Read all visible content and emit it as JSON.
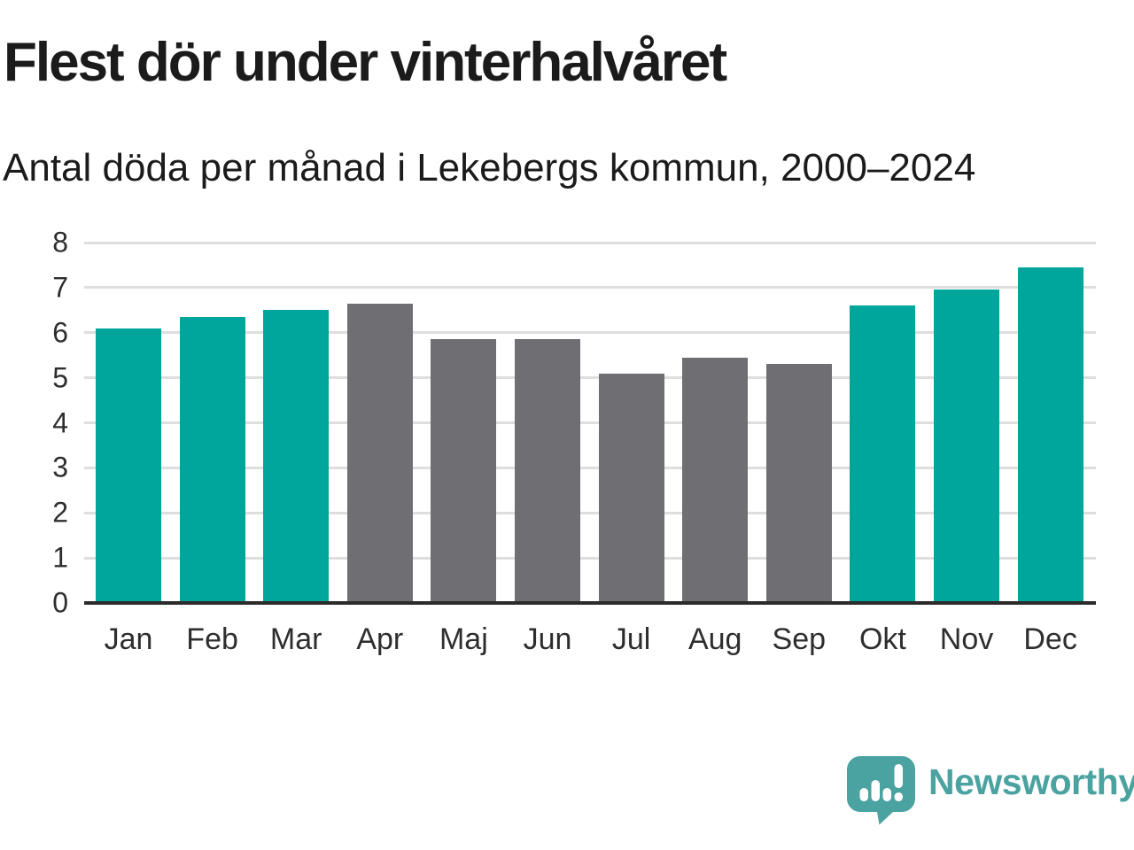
{
  "title": "Flest dör under vinterhalvåret",
  "subtitle": "Antal döda per månad i Lekebergs kommun, 2000–2024",
  "chart_data": {
    "type": "bar",
    "title": "Flest dör under vinterhalvåret",
    "subtitle": "Antal döda per månad i Lekebergs kommun, 2000–2024",
    "categories": [
      "Jan",
      "Feb",
      "Mar",
      "Apr",
      "Maj",
      "Jun",
      "Jul",
      "Aug",
      "Sep",
      "Okt",
      "Nov",
      "Dec"
    ],
    "values": [
      6.1,
      6.35,
      6.5,
      6.65,
      5.85,
      5.85,
      5.1,
      5.45,
      5.3,
      6.6,
      6.95,
      7.45
    ],
    "highlighted_categories": [
      "Jan",
      "Feb",
      "Mar",
      "Okt",
      "Nov",
      "Dec"
    ],
    "xlabel": "",
    "ylabel": "",
    "ylim": [
      0,
      8
    ],
    "yticks": [
      0,
      1,
      2,
      3,
      4,
      5,
      6,
      7,
      8
    ],
    "grid": true,
    "legend_position": "none",
    "colors": {
      "highlight_bar": "#00A69B",
      "default_bar": "#6E6E73",
      "gridline": "#dedede",
      "axis_line": "#2b2b2b",
      "tick_label": "#2e2e2e"
    }
  },
  "branding": {
    "logo_text": "Newsworthy",
    "logo_color": "#4AA3A0",
    "logo_icon": "newsworthy-speech-bubble-bar-chart-icon"
  }
}
